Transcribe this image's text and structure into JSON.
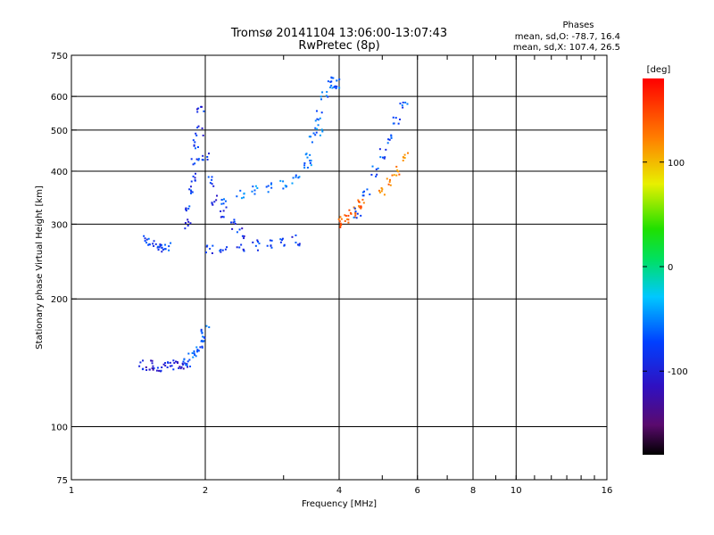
{
  "chart_data": {
    "type": "scatter",
    "title": "Tromsø 20141104  13:06:00-13:07:43",
    "subtitle": "RwPretec (8p)",
    "xlabel": "Frequency [MHz]",
    "ylabel": "Stationary phase Virtual Height [km]",
    "xscale": "log",
    "yscale": "log",
    "xlim": [
      1,
      16
    ],
    "ylim": [
      75,
      750
    ],
    "xticks": [
      1,
      2,
      4,
      6,
      8,
      10,
      16
    ],
    "xtick_labels": [
      "1",
      "2",
      "4",
      "6",
      "8",
      "10",
      "16"
    ],
    "xgrid_lines": [
      2,
      4,
      6,
      8,
      10
    ],
    "yticks": [
      75,
      100,
      200,
      300,
      400,
      500,
      600,
      750
    ],
    "ytick_labels": [
      "75",
      "100",
      "200",
      "300",
      "400",
      "500",
      "600",
      "750"
    ],
    "ygrid_lines": [
      100,
      200,
      300,
      400,
      500,
      600
    ],
    "phase_stats": {
      "header": "Phases",
      "line1": "mean, sd,O: -78.7, 16.4",
      "line2": "mean, sd,X: 107.4, 26.5"
    },
    "colorbar": {
      "label": "[deg]",
      "range": [
        -180,
        180
      ],
      "ticks": [
        -100,
        0,
        100
      ],
      "tick_labels": [
        "-100",
        "0",
        "100"
      ],
      "palette": "rainbow (black-purple-blue-cyan-green-yellow-red)"
    },
    "traces": [
      {
        "name_hidden": true,
        "x": [
          1.48,
          1.52,
          1.56,
          1.6,
          1.64
        ],
        "y": [
          275,
          270,
          267,
          265,
          264
        ],
        "phase": -90
      },
      {
        "x": [
          1.45,
          1.5,
          1.55,
          1.6,
          1.65,
          1.7,
          1.75,
          1.8
        ],
        "y": [
          140,
          140,
          139,
          139,
          138,
          140,
          140,
          141
        ],
        "phase": -110
      },
      {
        "x": [
          1.82,
          1.86,
          1.9,
          1.94,
          1.98,
          2.0
        ],
        "y": [
          142,
          145,
          150,
          155,
          162,
          168
        ],
        "phase": -80
      },
      {
        "x": [
          1.82,
          1.84,
          1.86,
          1.88,
          1.9,
          1.92,
          1.94
        ],
        "y": [
          300,
          330,
          360,
          390,
          420,
          460,
          500
        ],
        "phase": -95
      },
      {
        "x": [
          1.95,
          2.0,
          2.05,
          2.1,
          2.2,
          2.3,
          2.4
        ],
        "y": [
          560,
          430,
          380,
          340,
          320,
          300,
          285
        ],
        "phase": -100
      },
      {
        "x": [
          2.05,
          2.2,
          2.4,
          2.6,
          2.8,
          3.0,
          3.2
        ],
        "y": [
          262,
          264,
          266,
          268,
          270,
          272,
          275
        ],
        "phase": -95
      },
      {
        "x": [
          2.2,
          2.4,
          2.6,
          2.8,
          3.0,
          3.2,
          3.4,
          3.6
        ],
        "y": [
          340,
          355,
          360,
          365,
          370,
          380,
          420,
          500
        ],
        "phase": -70
      },
      {
        "x": [
          3.4,
          3.5,
          3.6,
          3.7,
          3.8,
          3.9,
          4.0
        ],
        "y": [
          430,
          480,
          540,
          600,
          640,
          650,
          640
        ],
        "phase": -75
      },
      {
        "x": [
          4.0,
          4.1,
          4.2,
          4.3,
          4.4,
          4.5
        ],
        "y": [
          300,
          305,
          310,
          318,
          326,
          335
        ],
        "phase": 135
      },
      {
        "x": [
          4.4,
          4.6,
          4.8,
          5.0,
          5.2,
          5.4,
          5.6
        ],
        "y": [
          320,
          360,
          400,
          440,
          480,
          520,
          580
        ],
        "phase": -85
      },
      {
        "x": [
          5.0,
          5.2,
          5.4,
          5.6
        ],
        "y": [
          360,
          380,
          400,
          430
        ],
        "phase": 120
      }
    ]
  }
}
